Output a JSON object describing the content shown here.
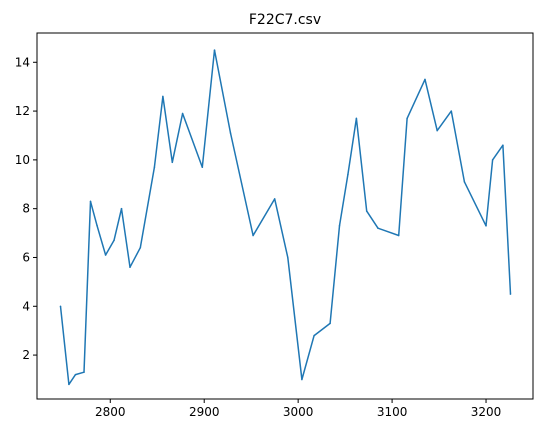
{
  "chart_data": {
    "type": "line",
    "title": "F22C7.csv",
    "xlabel": "",
    "ylabel": "",
    "xlim": [
      2722,
      3250
    ],
    "ylim": [
      0.2,
      15.2
    ],
    "x_ticks": [
      2800,
      2900,
      3000,
      3100,
      3200
    ],
    "y_ticks": [
      2,
      4,
      6,
      8,
      10,
      12,
      14
    ],
    "grid": false,
    "color": "#1f77b4",
    "series": [
      {
        "x": [
          2747,
          2756,
          2763,
          2772,
          2779,
          2786,
          2795,
          2804,
          2812,
          2821,
          2832,
          2847,
          2856,
          2866,
          2877,
          2898,
          2911,
          2928,
          2952,
          2975,
          2989,
          3004,
          3017,
          3034,
          3044,
          3053,
          3062,
          3073,
          3085,
          3107,
          3116,
          3135,
          3148,
          3163,
          3177,
          3200,
          3207,
          3218,
          3226
        ],
        "y": [
          4.0,
          0.8,
          1.2,
          1.3,
          8.3,
          7.3,
          6.1,
          6.7,
          8.0,
          5.6,
          6.4,
          9.7,
          12.6,
          9.9,
          11.9,
          9.7,
          14.5,
          11.1,
          6.9,
          8.4,
          6.0,
          1.0,
          2.8,
          3.3,
          7.3,
          9.4,
          11.7,
          7.9,
          7.2,
          6.9,
          11.7,
          13.3,
          11.2,
          12.0,
          9.1,
          7.3,
          10.0,
          10.6,
          4.5
        ]
      }
    ]
  }
}
